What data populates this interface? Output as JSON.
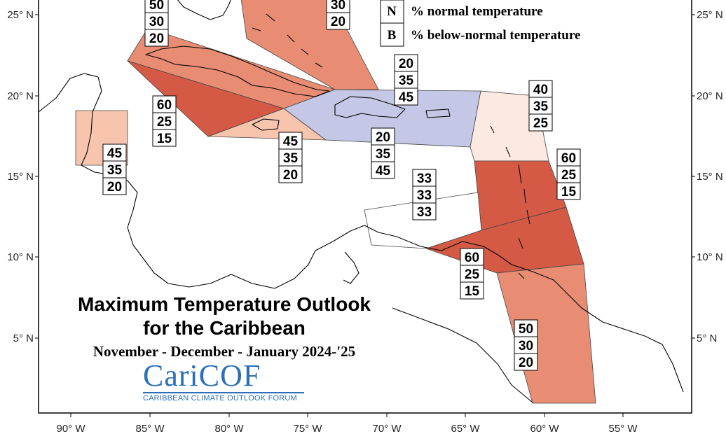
{
  "title": {
    "line1": "Maximum Temperature Outlook",
    "line2": "for the Caribbean",
    "period": "November - December - January 2024-'25"
  },
  "logo": {
    "name": "CariCOF",
    "subtitle": "CARIBBEAN CLIMATE OUTLOOK FORUM"
  },
  "legend": [
    {
      "key": "N",
      "text": "% normal temperature"
    },
    {
      "key": "B",
      "text": "% below-normal temperature"
    }
  ],
  "axes": {
    "lat_labels": [
      "25° N",
      "20° N",
      "15° N",
      "10° N",
      "5° N"
    ],
    "lon_labels": [
      "90° W",
      "85° W",
      "80° W",
      "75° W",
      "70° W",
      "65° W",
      "60° W",
      "55° W"
    ]
  },
  "colors": {
    "strong_above": "#d45a45",
    "moderate_above": "#e88d73",
    "weak_above": "#f7c4ad",
    "slight_above": "#fce9e1",
    "below": "#c5c7e6",
    "neutral": "#ffffff"
  },
  "regions": [
    {
      "id": "bahamas-north",
      "probs": [
        "50",
        "30",
        "20"
      ]
    },
    {
      "id": "bahamas-east",
      "probs": [
        "30",
        "20"
      ]
    },
    {
      "id": "cuba-cayman",
      "probs": [
        "60",
        "25",
        "15"
      ]
    },
    {
      "id": "belize",
      "probs": [
        "45",
        "35",
        "20"
      ]
    },
    {
      "id": "jamaica",
      "probs": [
        "45",
        "35",
        "20"
      ]
    },
    {
      "id": "hispaniola-pr",
      "probs": [
        "20",
        "35",
        "45"
      ]
    },
    {
      "id": "hispaniola-south",
      "probs": [
        "20",
        "35",
        "45"
      ]
    },
    {
      "id": "northern-leewards",
      "probs": [
        "40",
        "35",
        "25"
      ]
    },
    {
      "id": "windwards",
      "probs": [
        "60",
        "25",
        "15"
      ]
    },
    {
      "id": "abc-islands",
      "probs": [
        "33",
        "33",
        "33"
      ]
    },
    {
      "id": "trinidad-tobago",
      "probs": [
        "60",
        "25",
        "15"
      ]
    },
    {
      "id": "guianas",
      "probs": [
        "50",
        "30",
        "20"
      ]
    }
  ]
}
